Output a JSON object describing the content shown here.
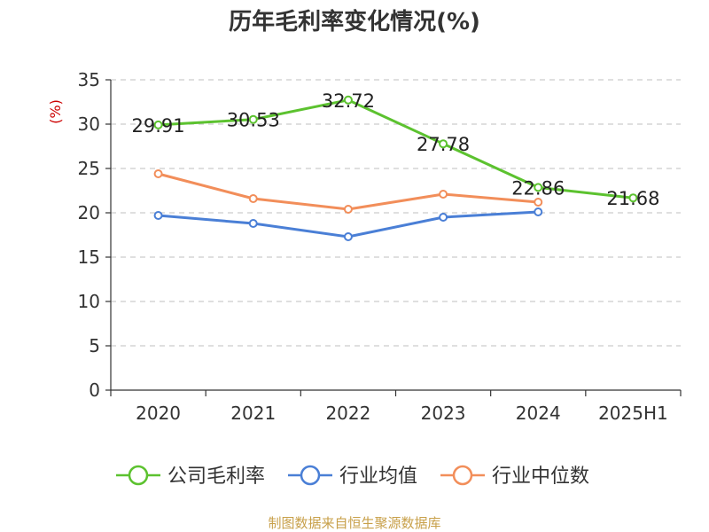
{
  "chart_data": {
    "type": "line",
    "title": "历年毛利率变化情况(%)",
    "ylabel": "(%)",
    "xlabel": "",
    "categories": [
      "2020",
      "2021",
      "2022",
      "2023",
      "2024",
      "2025H1"
    ],
    "ylim": [
      0,
      35
    ],
    "yticks": [
      0,
      5,
      10,
      15,
      20,
      25,
      30,
      35
    ],
    "grid": "horizontal dashed",
    "legend_position": "bottom",
    "series": [
      {
        "name": "公司毛利率",
        "color": "#5cc22f",
        "values": [
          29.91,
          30.53,
          32.72,
          27.78,
          22.86,
          21.68
        ],
        "labels": [
          "29.91",
          "30.53",
          "32.72",
          "27.78",
          "22.86",
          "21.68"
        ]
      },
      {
        "name": "行业均值",
        "color": "#4a7fd6",
        "values": [
          19.7,
          18.8,
          17.3,
          19.5,
          20.1,
          null
        ]
      },
      {
        "name": "行业中位数",
        "color": "#f28e5a",
        "values": [
          24.4,
          21.6,
          20.4,
          22.1,
          21.2,
          null
        ]
      }
    ]
  },
  "footer": {
    "source": "制图数据来自恒生聚源数据库"
  }
}
